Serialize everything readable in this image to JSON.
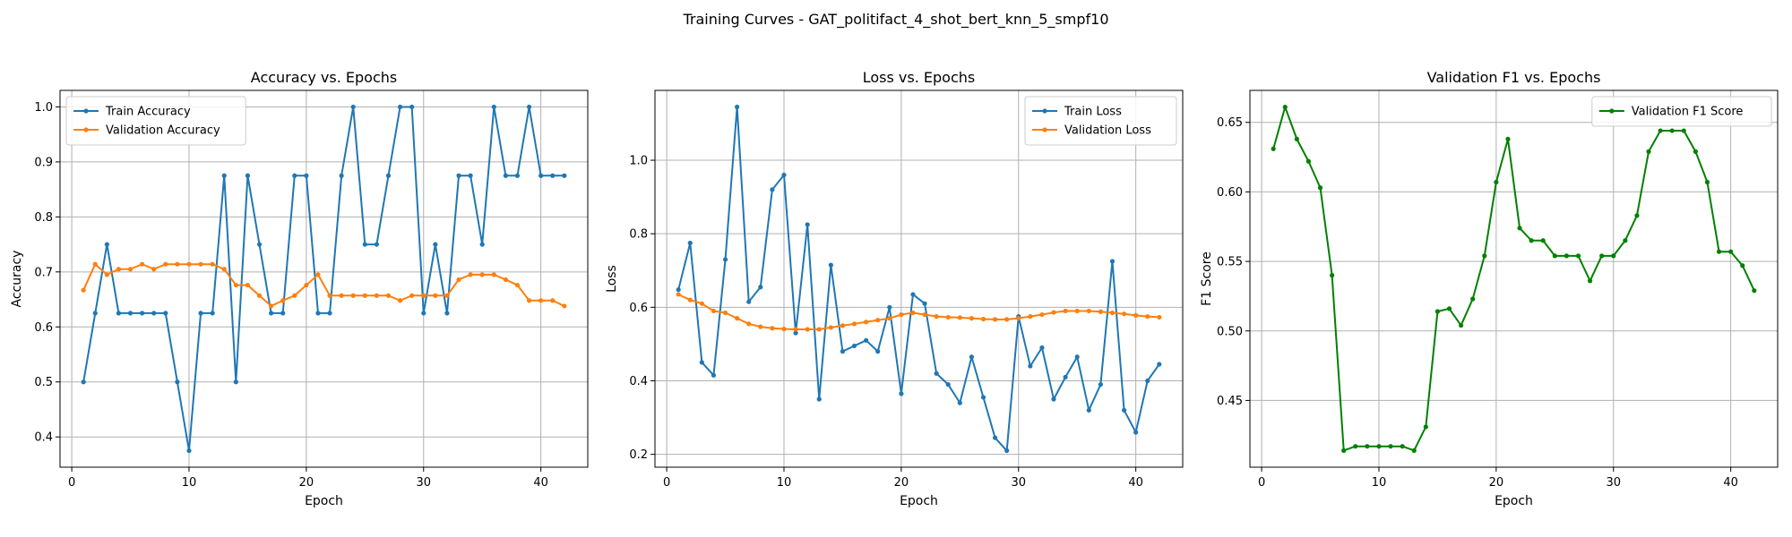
{
  "figure": {
    "suptitle": "Training Curves - GAT_politifact_4_shot_bert_knn_5_smpf10"
  },
  "colors": {
    "train": "#1f77b4",
    "validation": "#ff7f0e",
    "f1": "#008000",
    "grid": "#b0b0b0"
  },
  "chart_data": [
    {
      "type": "line",
      "title": "Accuracy vs. Epochs",
      "xlabel": "Epoch",
      "ylabel": "Accuracy",
      "xlim": [
        -1,
        44
      ],
      "ylim": [
        0.345,
        1.03
      ],
      "xticks": [
        0,
        10,
        20,
        30,
        40
      ],
      "yticks": [
        0.4,
        0.5,
        0.6,
        0.7,
        0.8,
        0.9,
        1.0
      ],
      "ytick_labels": [
        "0.4",
        "0.5",
        "0.6",
        "0.7",
        "0.8",
        "0.9",
        "1.0"
      ],
      "grid": true,
      "legend_position": "top-left",
      "x": [
        1,
        2,
        3,
        4,
        5,
        6,
        7,
        8,
        9,
        10,
        11,
        12,
        13,
        14,
        15,
        16,
        17,
        18,
        19,
        20,
        21,
        22,
        23,
        24,
        25,
        26,
        27,
        28,
        29,
        30,
        31,
        32,
        33,
        34,
        35,
        36,
        37,
        38,
        39,
        40,
        41,
        42
      ],
      "series": [
        {
          "name": "Train Accuracy",
          "color": "#1f77b4",
          "values": [
            0.5,
            0.625,
            0.75,
            0.625,
            0.625,
            0.625,
            0.625,
            0.625,
            0.5,
            0.375,
            0.625,
            0.625,
            0.875,
            0.5,
            0.875,
            0.75,
            0.625,
            0.625,
            0.875,
            0.875,
            0.625,
            0.625,
            0.875,
            1.0,
            0.75,
            0.75,
            0.875,
            1.0,
            1.0,
            0.625,
            0.75,
            0.625,
            0.875,
            0.875,
            0.75,
            1.0,
            0.875,
            0.875,
            1.0,
            0.875,
            0.875,
            0.875
          ]
        },
        {
          "name": "Validation Accuracy",
          "color": "#ff7f0e",
          "values": [
            0.667,
            0.714,
            0.695,
            0.705,
            0.705,
            0.714,
            0.705,
            0.714,
            0.714,
            0.714,
            0.714,
            0.714,
            0.705,
            0.676,
            0.676,
            0.657,
            0.638,
            0.648,
            0.657,
            0.676,
            0.695,
            0.657,
            0.657,
            0.657,
            0.657,
            0.657,
            0.657,
            0.648,
            0.657,
            0.657,
            0.657,
            0.657,
            0.686,
            0.695,
            0.695,
            0.695,
            0.686,
            0.676,
            0.648,
            0.648,
            0.648,
            0.638
          ]
        }
      ]
    },
    {
      "type": "line",
      "title": "Loss vs. Epochs",
      "xlabel": "Epoch",
      "ylabel": "Loss",
      "xlim": [
        -1,
        44
      ],
      "ylim": [
        0.165,
        1.19
      ],
      "xticks": [
        0,
        10,
        20,
        30,
        40
      ],
      "yticks": [
        0.2,
        0.4,
        0.6,
        0.8,
        1.0
      ],
      "ytick_labels": [
        "0.2",
        "0.4",
        "0.6",
        "0.8",
        "1.0"
      ],
      "grid": true,
      "legend_position": "top-right",
      "x": [
        1,
        2,
        3,
        4,
        5,
        6,
        7,
        8,
        9,
        10,
        11,
        12,
        13,
        14,
        15,
        16,
        17,
        18,
        19,
        20,
        21,
        22,
        23,
        24,
        25,
        26,
        27,
        28,
        29,
        30,
        31,
        32,
        33,
        34,
        35,
        36,
        37,
        38,
        39,
        40,
        41,
        42
      ],
      "series": [
        {
          "name": "Train Loss",
          "color": "#1f77b4",
          "values": [
            0.648,
            0.775,
            0.45,
            0.415,
            0.73,
            1.145,
            0.615,
            0.655,
            0.92,
            0.96,
            0.53,
            0.825,
            0.35,
            0.715,
            0.48,
            0.495,
            0.51,
            0.48,
            0.6,
            0.365,
            0.635,
            0.61,
            0.42,
            0.39,
            0.34,
            0.465,
            0.355,
            0.245,
            0.21,
            0.575,
            0.44,
            0.49,
            0.35,
            0.41,
            0.465,
            0.32,
            0.39,
            0.725,
            0.32,
            0.26,
            0.4,
            0.445
          ]
        },
        {
          "name": "Validation Loss",
          "color": "#ff7f0e",
          "values": [
            0.635,
            0.62,
            0.61,
            0.59,
            0.585,
            0.57,
            0.555,
            0.547,
            0.543,
            0.541,
            0.54,
            0.54,
            0.54,
            0.545,
            0.55,
            0.555,
            0.56,
            0.565,
            0.57,
            0.58,
            0.585,
            0.58,
            0.575,
            0.573,
            0.572,
            0.57,
            0.568,
            0.567,
            0.567,
            0.57,
            0.575,
            0.58,
            0.586,
            0.59,
            0.59,
            0.59,
            0.588,
            0.585,
            0.582,
            0.578,
            0.575,
            0.573
          ]
        }
      ]
    },
    {
      "type": "line",
      "title": "Validation F1 vs. Epochs",
      "xlabel": "Epoch",
      "ylabel": "F1 Score",
      "xlim": [
        -1,
        44
      ],
      "ylim": [
        0.402,
        0.673
      ],
      "xticks": [
        0,
        10,
        20,
        30,
        40
      ],
      "yticks": [
        0.45,
        0.5,
        0.55,
        0.6,
        0.65
      ],
      "ytick_labels": [
        "0.45",
        "0.50",
        "0.55",
        "0.60",
        "0.65"
      ],
      "grid": true,
      "legend_position": "top-right",
      "x": [
        1,
        2,
        3,
        4,
        5,
        6,
        7,
        8,
        9,
        10,
        11,
        12,
        13,
        14,
        15,
        16,
        17,
        18,
        19,
        20,
        21,
        22,
        23,
        24,
        25,
        26,
        27,
        28,
        29,
        30,
        31,
        32,
        33,
        34,
        35,
        36,
        37,
        38,
        39,
        40,
        41,
        42
      ],
      "series": [
        {
          "name": "Validation F1 Score",
          "color": "#008000",
          "values": [
            0.631,
            0.661,
            0.638,
            0.622,
            0.603,
            0.54,
            0.414,
            0.417,
            0.417,
            0.417,
            0.417,
            0.417,
            0.414,
            0.431,
            0.514,
            0.516,
            0.504,
            0.523,
            0.554,
            0.607,
            0.638,
            0.574,
            0.565,
            0.565,
            0.554,
            0.554,
            0.554,
            0.536,
            0.554,
            0.554,
            0.565,
            0.583,
            0.629,
            0.644,
            0.644,
            0.644,
            0.629,
            0.607,
            0.557,
            0.557,
            0.547,
            0.529
          ]
        }
      ]
    }
  ]
}
